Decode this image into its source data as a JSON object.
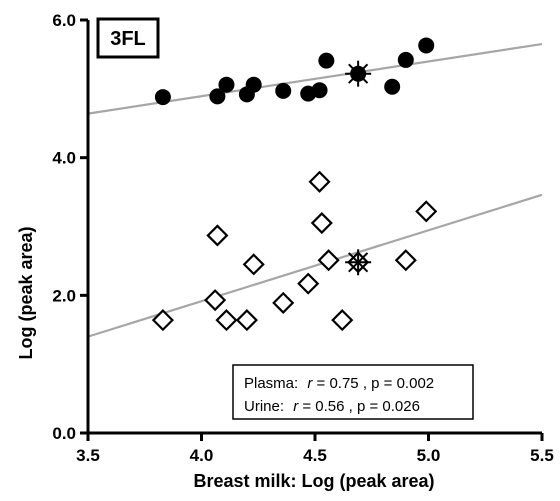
{
  "chart_data": {
    "type": "scatter",
    "panel_label": "3FL",
    "xlabel": "Breast milk: Log (peak area)",
    "ylabel": "Log (peak area)",
    "xlim": [
      3.5,
      5.5
    ],
    "ylim": [
      0.0,
      6.0
    ],
    "x_ticks": [
      "3.5",
      "4.0",
      "4.5",
      "5.0",
      "5.5"
    ],
    "y_ticks": [
      "0.0",
      "2.0",
      "4.0",
      "6.0"
    ],
    "grid": false,
    "legend": "none",
    "series": [
      {
        "name": "Plasma",
        "marker": "filled-circle",
        "color": "#000000",
        "points": [
          [
            3.83,
            4.88
          ],
          [
            4.07,
            4.89
          ],
          [
            4.11,
            5.06
          ],
          [
            4.2,
            4.92
          ],
          [
            4.23,
            5.06
          ],
          [
            4.36,
            4.97
          ],
          [
            4.47,
            4.93
          ],
          [
            4.52,
            4.98
          ],
          [
            4.55,
            5.41
          ],
          [
            4.84,
            5.03
          ],
          [
            4.9,
            5.42
          ],
          [
            4.99,
            5.63
          ]
        ],
        "mean": [
          4.69,
          5.22
        ],
        "regression": [
          [
            3.5,
            4.64
          ],
          [
            5.5,
            5.65
          ]
        ],
        "stats": {
          "label": "Plasma:",
          "r_label": "r",
          "r_text": " = 0.75 , p = 0.002"
        }
      },
      {
        "name": "Urine",
        "marker": "open-diamond",
        "color": "#000000",
        "points": [
          [
            3.83,
            1.64
          ],
          [
            4.06,
            1.93
          ],
          [
            4.07,
            2.87
          ],
          [
            4.11,
            1.64
          ],
          [
            4.2,
            1.64
          ],
          [
            4.23,
            2.45
          ],
          [
            4.36,
            1.89
          ],
          [
            4.47,
            2.17
          ],
          [
            4.52,
            3.65
          ],
          [
            4.53,
            3.05
          ],
          [
            4.56,
            2.51
          ],
          [
            4.62,
            1.64
          ],
          [
            4.9,
            2.51
          ],
          [
            4.99,
            3.22
          ]
        ],
        "mean": [
          4.69,
          2.48
        ],
        "regression": [
          [
            3.5,
            1.4
          ],
          [
            5.5,
            3.46
          ]
        ],
        "stats": {
          "label": "Urine:",
          "r_label": "r",
          "r_text": " = 0.56 , p = 0.026"
        }
      }
    ],
    "colors": {
      "axis": "#000000",
      "regression": "#a6a6a6",
      "marker": "#000000",
      "background": "#ffffff"
    }
  }
}
